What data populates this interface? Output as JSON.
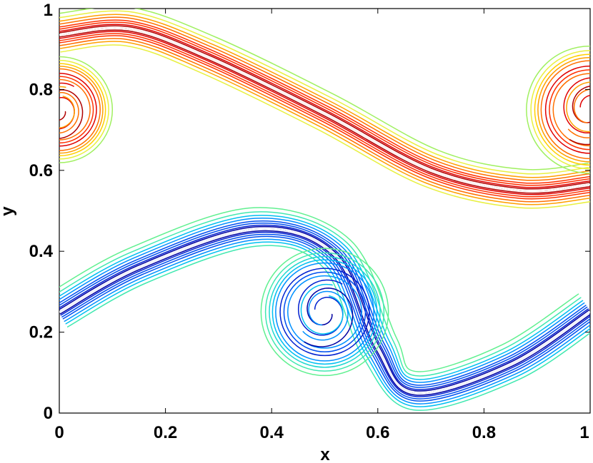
{
  "chart_data": {
    "type": "contour",
    "title": "",
    "xlabel": "x",
    "ylabel": "y",
    "xlim": [
      0,
      1
    ],
    "ylim": [
      0,
      1
    ],
    "x_ticks": [
      0,
      0.2,
      0.4,
      0.6,
      0.8,
      1
    ],
    "y_ticks": [
      0,
      0.2,
      0.4,
      0.6,
      0.8,
      1
    ],
    "x_tick_labels": [
      "0",
      "0.2",
      "0.4",
      "0.6",
      "0.8",
      "1"
    ],
    "y_tick_labels": [
      "0",
      "0.2",
      "0.4",
      "0.6",
      "0.8",
      "1"
    ],
    "grid": false,
    "colormap": "jet",
    "features": [
      {
        "name": "upper-shear-layer",
        "palette": [
          "#b00000",
          "#e00000",
          "#ff3000",
          "#ff7000",
          "#ffa000",
          "#ffd000",
          "#e8f040",
          "#a0f060"
        ],
        "interface": [
          [
            0,
            0.935
          ],
          [
            0.13,
            0.95
          ],
          [
            0.28,
            0.88
          ],
          [
            0.5,
            0.74
          ],
          [
            0.7,
            0.6
          ],
          [
            0.87,
            0.55
          ],
          [
            1,
            0.565
          ]
        ],
        "vortex_centers": [
          [
            0.0,
            0.75
          ],
          [
            1.0,
            0.75
          ]
        ],
        "vortex_radius": [
          0.1,
          0.12
        ]
      },
      {
        "name": "lower-shear-layer",
        "palette": [
          "#0000a0",
          "#0020d0",
          "#0050f0",
          "#0090ff",
          "#00c0f0",
          "#20d8d0",
          "#40e8b0",
          "#60f090"
        ],
        "interface": [
          [
            0,
            0.25
          ],
          [
            0.15,
            0.36
          ],
          [
            0.37,
            0.455
          ],
          [
            0.52,
            0.39
          ],
          [
            0.6,
            0.16
          ],
          [
            0.67,
            0.05
          ],
          [
            0.85,
            0.12
          ],
          [
            1,
            0.25
          ]
        ],
        "vortex_centers": [
          [
            0.5,
            0.25
          ]
        ],
        "vortex_radius": [
          0.12
        ]
      }
    ]
  }
}
